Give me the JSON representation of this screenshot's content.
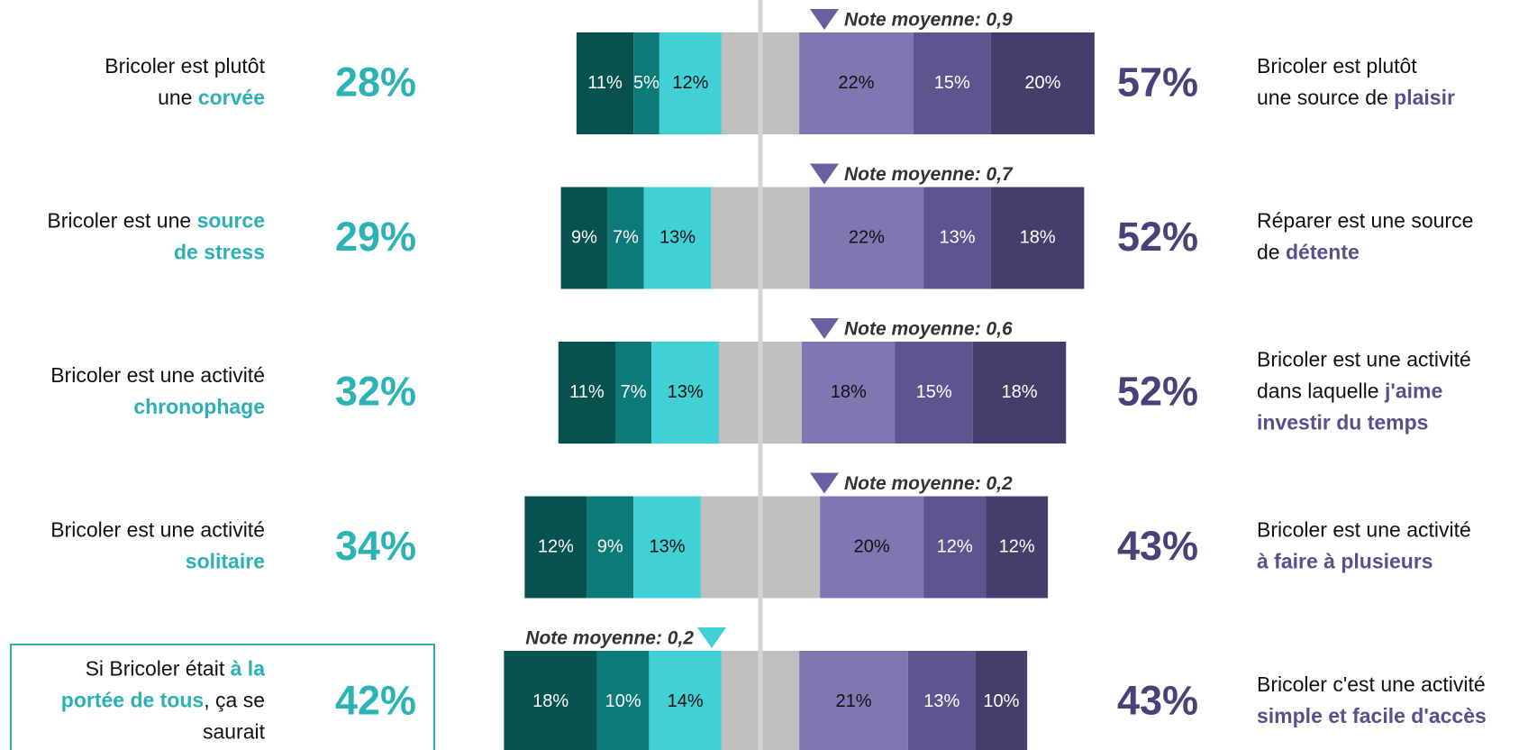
{
  "chart_data": {
    "type": "diverging_bar",
    "series": [
      {
        "color": "#07514e",
        "values": [
          11,
          9,
          11,
          12,
          18
        ],
        "value_labels": [
          "11%",
          "9%",
          "11%",
          "12%",
          "18%"
        ]
      },
      {
        "color": "#0b7a78",
        "values": [
          5,
          7,
          7,
          9,
          10
        ],
        "value_labels": [
          "5%",
          "7%",
          "7%",
          "9%",
          "10%"
        ]
      },
      {
        "color": "#40d0d5",
        "values": [
          12,
          13,
          13,
          13,
          14
        ],
        "value_labels": [
          "12%",
          "13%",
          "13%",
          "13%",
          "14%"
        ]
      },
      {
        "color": "#bfbfbf",
        "values": [
          15,
          19,
          16,
          23,
          15
        ]
      },
      {
        "color": "#8076b2",
        "values": [
          22,
          22,
          18,
          20,
          21
        ],
        "value_labels": [
          "22%",
          "22%",
          "18%",
          "20%",
          "21%"
        ]
      },
      {
        "color": "#5f5490",
        "values": [
          15,
          13,
          15,
          12,
          13
        ],
        "value_labels": [
          "15%",
          "13%",
          "15%",
          "12%",
          "13%"
        ]
      },
      {
        "color": "#453d6b",
        "values": [
          20,
          18,
          18,
          12,
          10
        ],
        "value_labels": [
          "20%",
          "18%",
          "18%",
          "12%",
          "10%"
        ]
      }
    ],
    "left_totals": [
      28,
      29,
      32,
      34,
      42
    ],
    "left_total_labels": [
      "28%",
      "29%",
      "32%",
      "34%",
      "42%"
    ],
    "right_totals": [
      57,
      52,
      52,
      43,
      43
    ],
    "right_total_labels": [
      "57%",
      "52%",
      "52%",
      "43%",
      "43%"
    ],
    "notes": [
      {
        "label": "Note moyenne: 0,9",
        "side": "right"
      },
      {
        "label": "Note moyenne: 0,7",
        "side": "right"
      },
      {
        "label": "Note moyenne: 0,6",
        "side": "right"
      },
      {
        "label": "Note moyenne: 0,2",
        "side": "right"
      },
      {
        "label": "Note moyenne: 0,2",
        "side": "left"
      }
    ],
    "left_texts": [
      [
        [
          {
            "t": "Bricoler est plutôt"
          }
        ],
        [
          {
            "t": "une "
          },
          {
            "t": "corvée",
            "em": true
          }
        ]
      ],
      [
        [
          {
            "t": "Bricoler est une "
          },
          {
            "t": "source",
            "em": true
          }
        ],
        [
          {
            "t": "de stress",
            "em": true
          }
        ]
      ],
      [
        [
          {
            "t": "Bricoler est une activité"
          }
        ],
        [
          {
            "t": "chronophage",
            "em": true
          }
        ]
      ],
      [
        [
          {
            "t": "Bricoler est une activité"
          }
        ],
        [
          {
            "t": "solitaire",
            "em": true
          }
        ]
      ],
      [
        [
          {
            "t": "Si Bricoler était "
          },
          {
            "t": "à la",
            "em": true
          }
        ],
        [
          {
            "t": "portée de tous",
            "em": true
          },
          {
            "t": ", ça se"
          }
        ],
        [
          {
            "t": "saurait"
          }
        ]
      ]
    ],
    "right_texts": [
      [
        [
          {
            "t": "Bricoler est plutôt"
          }
        ],
        [
          {
            "t": "une source de "
          },
          {
            "t": "plaisir",
            "em": true
          }
        ]
      ],
      [
        [
          {
            "t": "Réparer est une source"
          }
        ],
        [
          {
            "t": "de "
          },
          {
            "t": "détente",
            "em": true
          }
        ]
      ],
      [
        [
          {
            "t": "Bricoler est une activité"
          }
        ],
        [
          {
            "t": "dans laquelle "
          },
          {
            "t": "j'aime",
            "em": true
          }
        ],
        [
          {
            "t": "investir du temps",
            "em": true
          }
        ]
      ],
      [
        [
          {
            "t": "Bricoler est une activité"
          }
        ],
        [
          {
            "t": "à faire à plusieurs",
            "em": true
          }
        ]
      ],
      [
        [
          {
            "t": "Bricoler c'est une activité"
          }
        ],
        [
          {
            "t": "simple et facile d'accès",
            "em": true
          }
        ]
      ]
    ]
  }
}
